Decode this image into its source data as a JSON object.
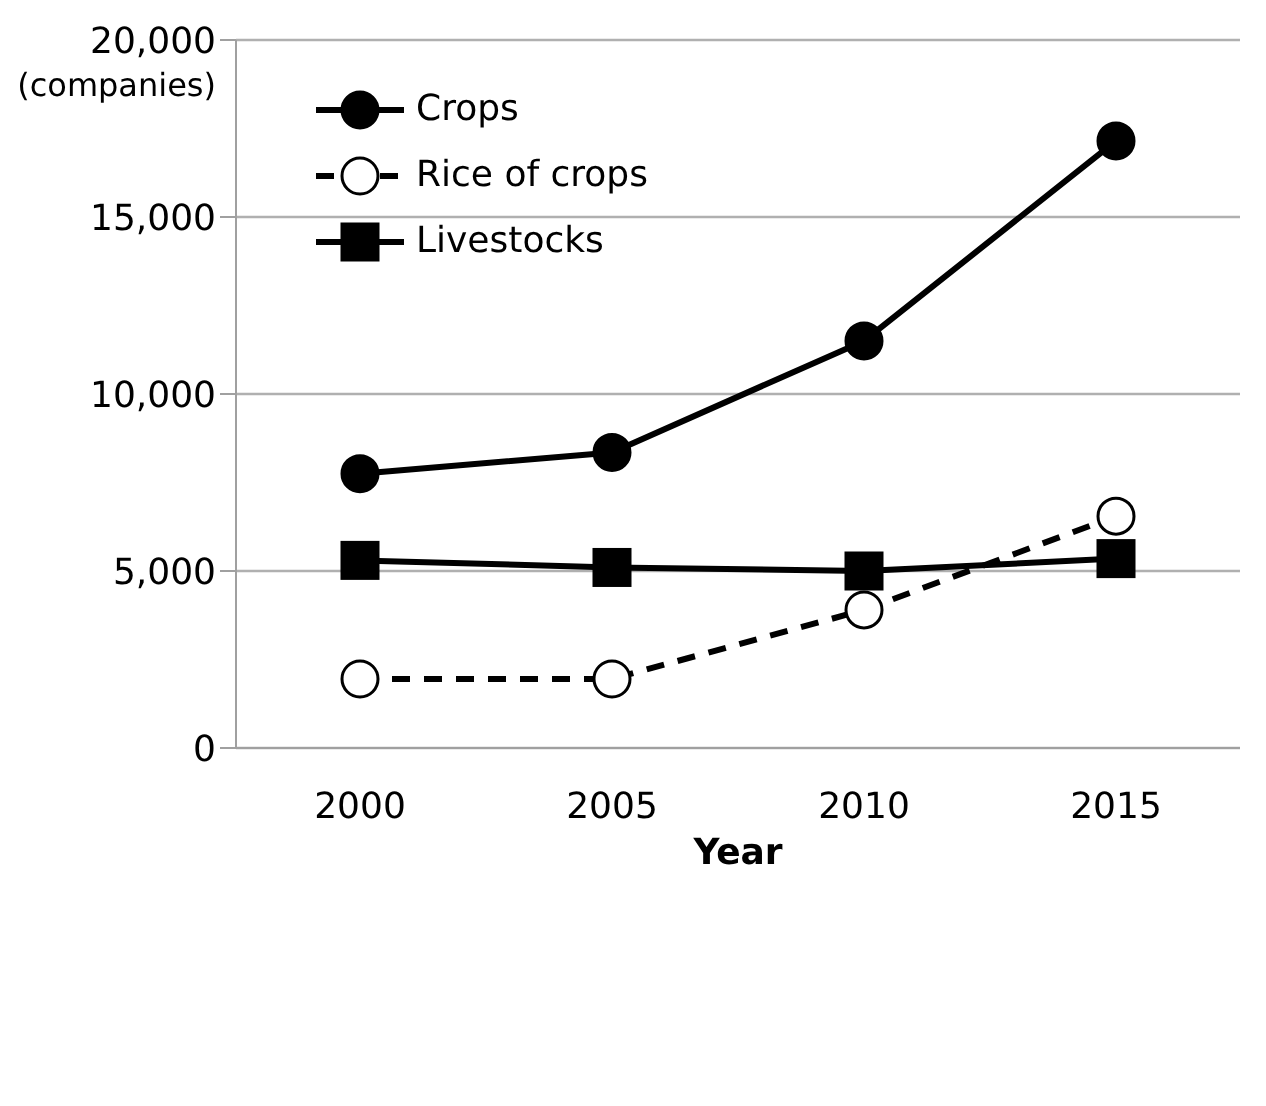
{
  "chart_data": {
    "type": "line",
    "xlabel": "Year",
    "ylabel": "(companies)",
    "categories": [
      "2000",
      "2005",
      "2010",
      "2015"
    ],
    "series": [
      {
        "name": "Crops",
        "color": "#000000",
        "values": [
          7750,
          8350,
          11500,
          17150
        ],
        "marker": "circle",
        "line_style": "solid"
      },
      {
        "name": "Rice of crops",
        "color": "#000000",
        "values": [
          1950,
          1950,
          3900,
          6550
        ],
        "marker": "circle",
        "line_style": "dashed"
      },
      {
        "name": "Livestocks",
        "color": "#000000",
        "values": [
          5300,
          5100,
          5000,
          5350
        ],
        "marker": "square",
        "line_style": "solid"
      }
    ],
    "ylim": [
      0,
      20000
    ],
    "yticks": [
      {
        "value": 0,
        "label": "0"
      },
      {
        "value": 5000,
        "label": "5,000"
      },
      {
        "value": 10000,
        "label": "10,000"
      },
      {
        "value": 15000,
        "label": "15,000"
      },
      {
        "value": 20000,
        "label": "20,000"
      }
    ],
    "grid": "y",
    "legend": "top left"
  }
}
